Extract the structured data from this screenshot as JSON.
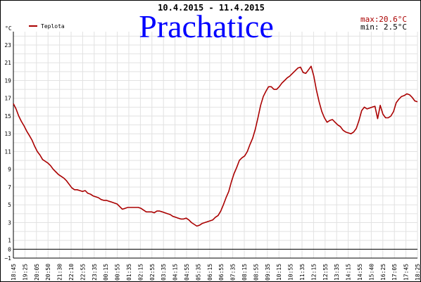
{
  "chart_data": {
    "type": "line",
    "date_range": "10.4.2015 - 11.4.2015",
    "location": "Prachatice",
    "y_unit": "°C",
    "legend": [
      "Teplota"
    ],
    "stats": {
      "max_label": "max:",
      "max_value": "20.6°C",
      "min_label": "min:",
      "min_value": "2.5°C"
    },
    "ylim": [
      -1,
      24.5
    ],
    "y_ticks": [
      -1,
      0,
      1,
      3,
      5,
      7,
      9,
      11,
      13,
      15,
      17,
      19,
      21,
      23
    ],
    "x_tick_labels": [
      "18:45",
      "19:25",
      "20:05",
      "20:50",
      "21:30",
      "22:10",
      "22:55",
      "23:35",
      "00:15",
      "00:55",
      "01:35",
      "02:15",
      "02:55",
      "03:35",
      "04:15",
      "04:55",
      "05:35",
      "06:15",
      "06:55",
      "07:35",
      "08:15",
      "08:55",
      "09:35",
      "10:15",
      "10:55",
      "11:35",
      "12:15",
      "12:55",
      "13:35",
      "14:15",
      "14:55",
      "15:40",
      "16:25",
      "17:05",
      "17:45",
      "18:25"
    ],
    "x_start": "18:45",
    "x_step_min": 10,
    "series": [
      {
        "name": "Teplota",
        "color": "#aa0000",
        "values": [
          16.4,
          15.8,
          15.0,
          14.4,
          13.9,
          13.3,
          12.8,
          12.3,
          11.6,
          11.0,
          10.6,
          10.1,
          9.9,
          9.7,
          9.4,
          9.0,
          8.7,
          8.4,
          8.2,
          8.0,
          7.7,
          7.3,
          6.9,
          6.7,
          6.7,
          6.6,
          6.5,
          6.6,
          6.3,
          6.2,
          6.0,
          5.9,
          5.8,
          5.6,
          5.5,
          5.5,
          5.4,
          5.3,
          5.2,
          5.1,
          4.8,
          4.5,
          4.6,
          4.7,
          4.7,
          4.7,
          4.7,
          4.7,
          4.6,
          4.4,
          4.2,
          4.2,
          4.2,
          4.1,
          4.3,
          4.3,
          4.2,
          4.1,
          4.0,
          3.9,
          3.7,
          3.6,
          3.5,
          3.4,
          3.4,
          3.5,
          3.3,
          3.0,
          2.8,
          2.6,
          2.7,
          2.9,
          3.0,
          3.1,
          3.2,
          3.3,
          3.6,
          3.8,
          4.3,
          5.0,
          5.8,
          6.5,
          7.6,
          8.5,
          9.2,
          10.0,
          10.3,
          10.5,
          11.0,
          11.8,
          12.5,
          13.5,
          14.8,
          16.2,
          17.2,
          17.8,
          18.3,
          18.3,
          18.0,
          18.0,
          18.3,
          18.7,
          19.0,
          19.3,
          19.5,
          19.8,
          20.1,
          20.4,
          20.5,
          19.9,
          19.8,
          20.2,
          20.6,
          19.5,
          17.9,
          16.6,
          15.5,
          14.8,
          14.3,
          14.5,
          14.6,
          14.3,
          14.0,
          13.8,
          13.4,
          13.2,
          13.1,
          13.0,
          13.2,
          13.6,
          14.5,
          15.6,
          16.0,
          15.8,
          15.9,
          16.0,
          16.1,
          14.7,
          16.2,
          15.2,
          14.8,
          14.8,
          15.0,
          15.5,
          16.5,
          16.9,
          17.2,
          17.3,
          17.5,
          17.4,
          17.1,
          16.7,
          16.6
        ]
      }
    ]
  },
  "watermark": "Prachatice"
}
